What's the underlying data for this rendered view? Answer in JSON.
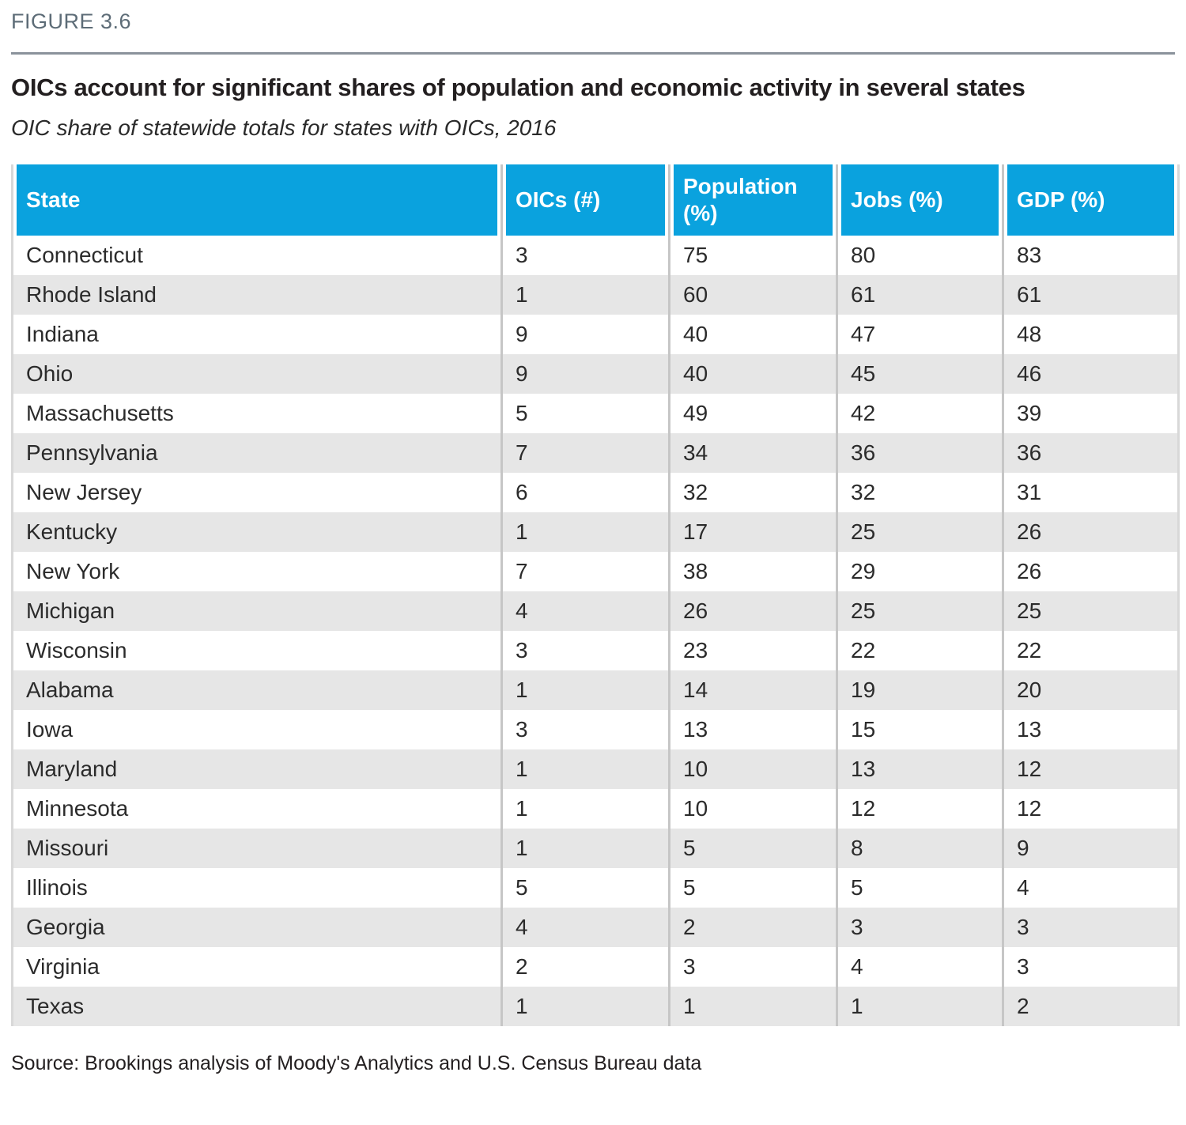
{
  "figure": {
    "label": "FIGURE 3.6",
    "title": "OICs account for significant shares of population and economic activity in several states",
    "subtitle": "OIC share of statewide totals for states with OICs, 2016",
    "source": "Source: Brookings analysis of Moody's Analytics and U.S. Census Bureau data"
  },
  "colors": {
    "header_bg": "#0aa2de",
    "header_text": "#ffffff",
    "row_alt_bg": "#e6e6e6",
    "column_divider": "#c6c6c6",
    "outer_border": "#d8d8d8",
    "figure_label_text": "#5d6c77",
    "top_rule": "#8a929b",
    "body_text": "#231f20"
  },
  "chart_data": {
    "type": "table",
    "title": "OICs account for significant shares of population and economic activity in several states",
    "subtitle": "OIC share of statewide totals for states with OICs, 2016",
    "columns": [
      "State",
      "OICs (#)",
      "Population (%)",
      "Jobs (%)",
      "GDP (%)"
    ],
    "rows": [
      [
        "Connecticut",
        3,
        75,
        80,
        83
      ],
      [
        "Rhode Island",
        1,
        60,
        61,
        61
      ],
      [
        "Indiana",
        9,
        40,
        47,
        48
      ],
      [
        "Ohio",
        9,
        40,
        45,
        46
      ],
      [
        "Massachusetts",
        5,
        49,
        42,
        39
      ],
      [
        "Pennsylvania",
        7,
        34,
        36,
        36
      ],
      [
        "New Jersey",
        6,
        32,
        32,
        31
      ],
      [
        "Kentucky",
        1,
        17,
        25,
        26
      ],
      [
        "New York",
        7,
        38,
        29,
        26
      ],
      [
        "Michigan",
        4,
        26,
        25,
        25
      ],
      [
        "Wisconsin",
        3,
        23,
        22,
        22
      ],
      [
        "Alabama",
        1,
        14,
        19,
        20
      ],
      [
        "Iowa",
        3,
        13,
        15,
        13
      ],
      [
        "Maryland",
        1,
        10,
        13,
        12
      ],
      [
        "Minnesota",
        1,
        10,
        12,
        12
      ],
      [
        "Missouri",
        1,
        5,
        8,
        9
      ],
      [
        "Illinois",
        5,
        5,
        5,
        4
      ],
      [
        "Georgia",
        4,
        2,
        3,
        3
      ],
      [
        "Virginia",
        2,
        3,
        4,
        3
      ],
      [
        "Texas",
        1,
        1,
        1,
        2
      ]
    ],
    "striping": "odd rows white, even rows light gray",
    "legend_position": "none",
    "grid": "vertical column dividers only"
  }
}
